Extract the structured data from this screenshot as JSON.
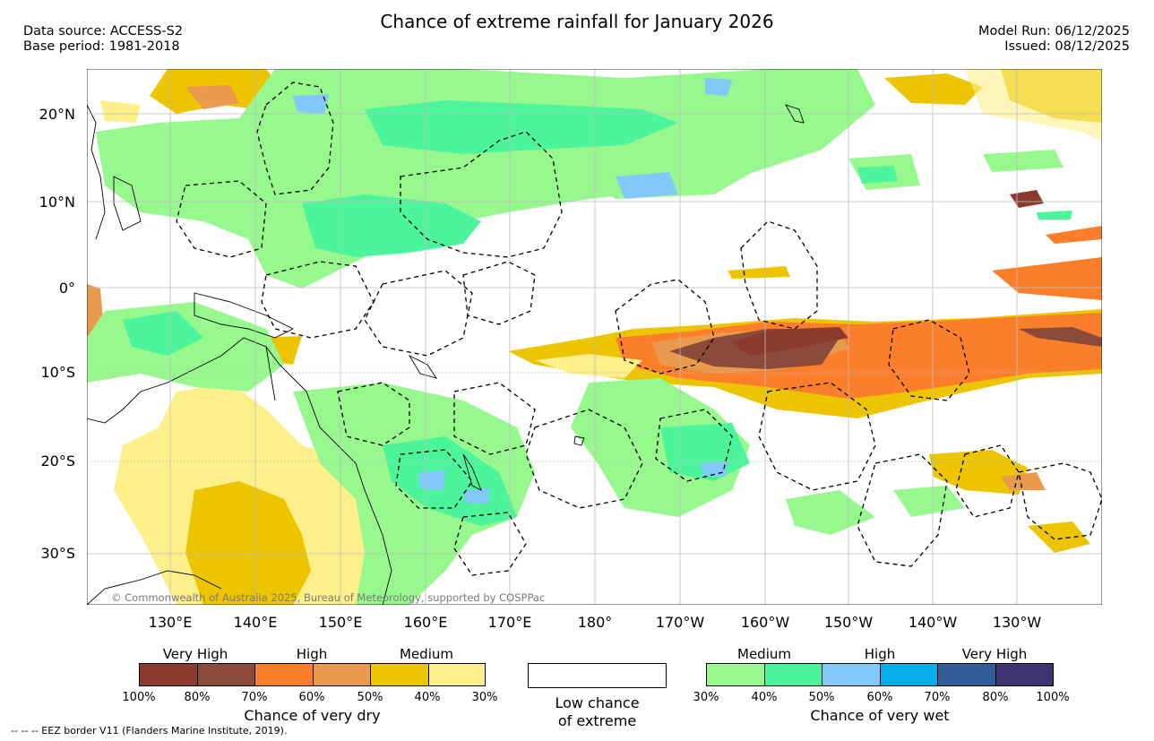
{
  "header": {
    "title": "Chance of extreme rainfall for January 2026",
    "data_source": "Data source: ACCESS-S2",
    "base_period": "Base period: 1981-2018",
    "model_run": "Model Run: 06/12/2025",
    "issued": "Issued: 08/12/2025"
  },
  "map": {
    "lat_labels": [
      "20°N",
      "10°N",
      "0°",
      "10°S",
      "20°S",
      "30°S"
    ],
    "lon_labels": [
      "130°E",
      "140°E",
      "150°E",
      "160°E",
      "170°E",
      "180°",
      "170°W",
      "160°W",
      "150°W",
      "140°W",
      "130°W"
    ],
    "copyright": "© Commonwealth of Australia 2025, Bureau of Meteorology, supported by COSPPac"
  },
  "legend": {
    "dry": {
      "categories": [
        "Very High",
        "High",
        "Medium"
      ],
      "ticks": [
        "100%",
        "80%",
        "70%",
        "60%",
        "50%",
        "40%",
        "30%"
      ],
      "colors": [
        "#8b3a2e",
        "#8c4a3a",
        "#fb7f2a",
        "#e99a4c",
        "#ecc400",
        "#fdf08a"
      ],
      "title": "Chance of very dry"
    },
    "low": {
      "label_line1": "Low chance",
      "label_line2": "of extreme"
    },
    "wet": {
      "categories": [
        "Medium",
        "High",
        "Very High"
      ],
      "ticks": [
        "30%",
        "40%",
        "50%",
        "60%",
        "70%",
        "80%",
        "100%"
      ],
      "colors": [
        "#97f88e",
        "#4cf59c",
        "#82c8fb",
        "#05aee8",
        "#305d9a",
        "#3e3470"
      ],
      "title": "Chance of very wet"
    }
  },
  "footer": {
    "eez_note": "-- -- -- EEZ border V11 (Flanders Marine Institute, 2019)."
  }
}
